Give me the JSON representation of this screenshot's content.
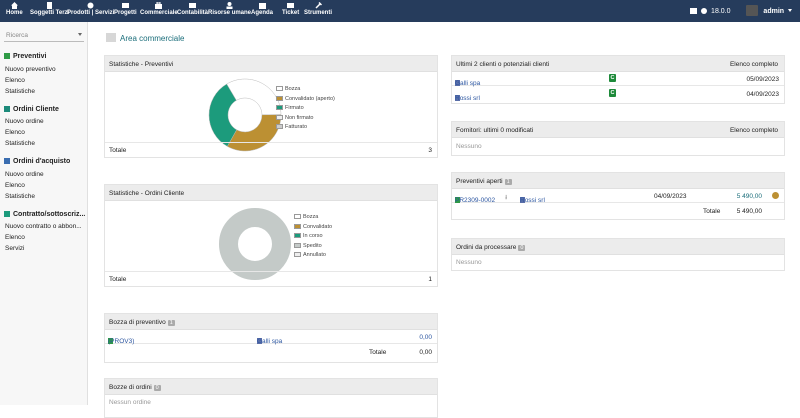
{
  "topbar": {
    "nav": [
      {
        "label": "Home",
        "icon": "home-icon"
      },
      {
        "label": "Soggetti Terzi",
        "icon": "building-icon"
      },
      {
        "label": "Prodotti | Servizi",
        "icon": "cube-icon"
      },
      {
        "label": "Progetti",
        "icon": "folder-icon"
      },
      {
        "label": "Commerciale",
        "icon": "briefcase-icon"
      },
      {
        "label": "Contabilità",
        "icon": "coins-icon"
      },
      {
        "label": "Risorse umane",
        "icon": "users-icon"
      },
      {
        "label": "Agenda",
        "icon": "calendar-icon"
      },
      {
        "label": "Ticket",
        "icon": "ticket-icon"
      },
      {
        "label": "Strumenti",
        "icon": "wrench-icon"
      }
    ],
    "version": "18.0.0",
    "user": "admin"
  },
  "sidebar": {
    "search_placeholder": "Ricerca",
    "sections": [
      {
        "title": "Preventivi",
        "items": [
          "Nuovo preventivo",
          "Elenco",
          "Statistiche"
        ]
      },
      {
        "title": "Ordini Cliente",
        "items": [
          "Nuovo ordine",
          "Elenco",
          "Statistiche"
        ]
      },
      {
        "title": "Ordini d'acquisto",
        "items": [
          "Nuovo ordine",
          "Elenco",
          "Statistiche"
        ]
      },
      {
        "title": "Contratto/sottoscriz...",
        "items": [
          "Nuovo contratto o abbon...",
          "Elenco",
          "Servizi"
        ]
      }
    ]
  },
  "main": {
    "title": "Area commerciale",
    "stats_preventivi": {
      "title": "Statistiche - Preventivi",
      "legend": [
        "Bozza",
        "Convalidato (aperto)",
        "Firmato",
        "Non firmato",
        "Fatturato"
      ],
      "total_label": "Totale",
      "total_value": "3"
    },
    "stats_ordini": {
      "title": "Statistiche - Ordini Cliente",
      "legend": [
        "Bozza",
        "Convalidato",
        "In corso",
        "Spedito",
        "Annullato"
      ],
      "total_label": "Totale",
      "total_value": "1"
    },
    "bozza_preventivo": {
      "title": "Bozza di preventivo",
      "badge": "1",
      "ref": "(PROV3)",
      "client": "Galli spa",
      "amount": "0,00",
      "total_label": "Totale",
      "total_value": "0,00"
    },
    "bozze_ordini": {
      "title": "Bozze di ordini",
      "badge": "0",
      "empty": "Nessun ordine"
    },
    "ultimi_clienti": {
      "title": "Ultimi 2 clienti o potenziali clienti",
      "link": "Elenco completo",
      "rows": [
        {
          "name": "Galli spa",
          "badge": "C",
          "date": "05/09/2023"
        },
        {
          "name": "Rossi srl",
          "badge": "C",
          "date": "04/09/2023"
        }
      ]
    },
    "fornitori": {
      "title": "Fornitori: ultimi 0 modificati",
      "link": "Elenco completo",
      "empty": "Nessuno"
    },
    "preventivi_aperti": {
      "title": "Preventivi aperti",
      "badge": "1",
      "ref": "PR2309-0002",
      "client": "Rossi srl",
      "date": "04/09/2023",
      "amount": "5 490,00",
      "total_label": "Totale",
      "total_value": "5 490,00"
    },
    "ordini_processare": {
      "title": "Ordini da processare",
      "badge": "0",
      "empty": "Nessuno"
    }
  },
  "colors": {
    "topbar": "#263c5c",
    "bozza": "#ffffff",
    "convalidato": "#bc9033",
    "firmato": "#1c9b7c",
    "spedito": "#c4cac8",
    "link": "#2b55a0"
  },
  "chart_data": [
    {
      "type": "pie",
      "title": "Statistiche - Preventivi",
      "categories": [
        "Bozza",
        "Convalidato (aperto)",
        "Firmato",
        "Non firmato",
        "Fatturato"
      ],
      "values": [
        1,
        1,
        1,
        0,
        0
      ]
    },
    {
      "type": "pie",
      "title": "Statistiche - Ordini Cliente",
      "categories": [
        "Bozza",
        "Convalidato",
        "In corso",
        "Spedito",
        "Annullato"
      ],
      "values": [
        0,
        0,
        0,
        1,
        0
      ]
    }
  ]
}
